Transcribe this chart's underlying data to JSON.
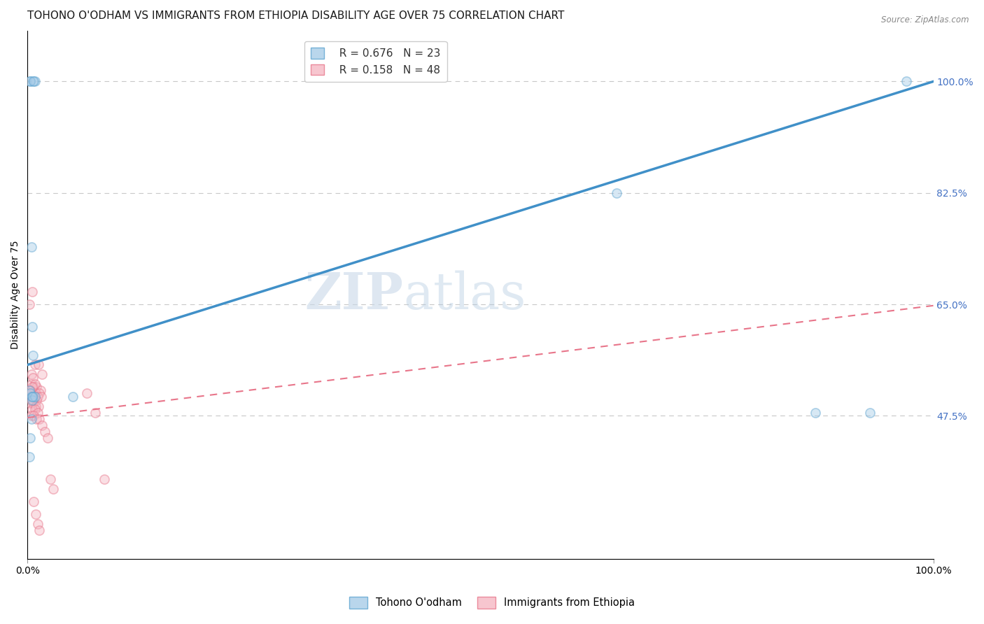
{
  "title": "TOHONO O'ODHAM VS IMMIGRANTS FROM ETHIOPIA DISABILITY AGE OVER 75 CORRELATION CHART",
  "source": "Source: ZipAtlas.com",
  "ylabel": "Disability Age Over 75",
  "xlim": [
    0,
    1.0
  ],
  "ylim": [
    0.25,
    1.08
  ],
  "yticks": [
    0.475,
    0.65,
    0.825,
    1.0
  ],
  "ytick_labels": [
    "47.5%",
    "65.0%",
    "82.5%",
    "100.0%"
  ],
  "xticks": [
    0.0,
    1.0
  ],
  "xtick_labels": [
    "0.0%",
    "100.0%"
  ],
  "blue_color": "#a8cce8",
  "pink_color": "#f5b8c4",
  "blue_edge_color": "#5ba3d0",
  "pink_edge_color": "#e8758a",
  "blue_line_color": "#4090c8",
  "pink_line_color": "#e8758a",
  "legend_R1": "R = 0.676",
  "legend_N1": "N = 23",
  "legend_R2": "R = 0.158",
  "legend_N2": "N = 48",
  "series1_label": "Tohono O'odham",
  "series2_label": "Immigrants from Ethiopia",
  "watermark_zip": "ZIP",
  "watermark_atlas": "atlas",
  "blue_dots_x": [
    0.003,
    0.006,
    0.008,
    0.003,
    0.007,
    0.004,
    0.005,
    0.006,
    0.002,
    0.003,
    0.004,
    0.006,
    0.005,
    0.008,
    0.05,
    0.65,
    0.87,
    0.93,
    0.97,
    0.004,
    0.003,
    0.002,
    0.005
  ],
  "blue_dots_y": [
    1.0,
    1.0,
    1.0,
    1.0,
    1.0,
    0.74,
    0.615,
    0.57,
    0.515,
    0.51,
    0.505,
    0.505,
    0.5,
    0.505,
    0.505,
    0.825,
    0.48,
    0.48,
    1.0,
    0.47,
    0.44,
    0.41,
    0.505
  ],
  "pink_dots_x": [
    0.005,
    0.008,
    0.012,
    0.016,
    0.004,
    0.007,
    0.01,
    0.014,
    0.003,
    0.006,
    0.009,
    0.013,
    0.005,
    0.008,
    0.011,
    0.015,
    0.004,
    0.007,
    0.01,
    0.003,
    0.006,
    0.009,
    0.012,
    0.005,
    0.008,
    0.011,
    0.004,
    0.007,
    0.01,
    0.013,
    0.016,
    0.019,
    0.022,
    0.025,
    0.028,
    0.065,
    0.075,
    0.085,
    0.002,
    0.004,
    0.006,
    0.008,
    0.005,
    0.003,
    0.007,
    0.009,
    0.011,
    0.013
  ],
  "pink_dots_y": [
    0.67,
    0.555,
    0.555,
    0.54,
    0.525,
    0.52,
    0.52,
    0.515,
    0.51,
    0.51,
    0.51,
    0.51,
    0.505,
    0.505,
    0.505,
    0.505,
    0.5,
    0.5,
    0.5,
    0.495,
    0.495,
    0.49,
    0.49,
    0.485,
    0.485,
    0.48,
    0.475,
    0.475,
    0.47,
    0.47,
    0.46,
    0.45,
    0.44,
    0.375,
    0.36,
    0.51,
    0.48,
    0.375,
    0.65,
    0.54,
    0.535,
    0.525,
    0.52,
    0.515,
    0.34,
    0.32,
    0.305,
    0.295
  ],
  "blue_line_x": [
    0.0,
    1.0
  ],
  "blue_line_y": [
    0.555,
    1.0
  ],
  "pink_line_x": [
    0.0,
    1.0
  ],
  "pink_line_y": [
    0.472,
    0.648
  ],
  "title_fontsize": 11,
  "axis_label_fontsize": 10,
  "tick_fontsize": 10,
  "legend_fontsize": 11,
  "dot_size": 90,
  "dot_alpha": 0.45,
  "background_color": "#ffffff",
  "grid_color": "#c8c8c8",
  "right_tick_color": "#4472c4"
}
